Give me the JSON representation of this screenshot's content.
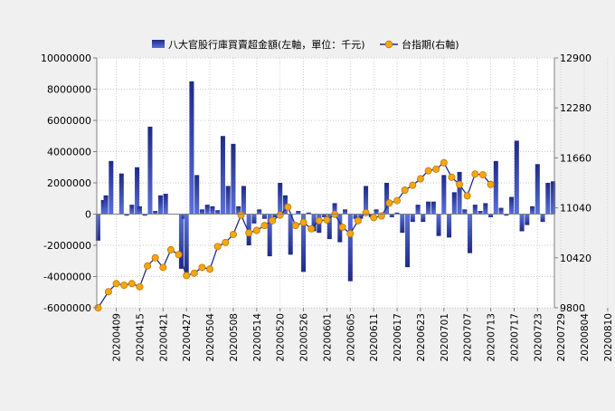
{
  "chart_data": {
    "type": "bar+line",
    "legend": {
      "placement": "top",
      "bar_label": "八大官股行庫買賣超金額(左軸，單位：千元)",
      "line_label": "台指期(右軸)"
    },
    "colors": {
      "bar_dark": "#1e2a86",
      "bar_light": "#5a70d8",
      "line": "#1f2a8c",
      "marker": "#f5a614",
      "marker_edge": "#c07a00",
      "plot_bg": "#ffffff",
      "page_bg": "#f0f0f0"
    },
    "y_left": {
      "min": -6000000,
      "max": 10000000,
      "ticks": [
        10000000,
        8000000,
        6000000,
        4000000,
        2000000,
        0,
        -2000000,
        -4000000,
        -6000000
      ]
    },
    "y_right": {
      "min": 9800,
      "max": 12900,
      "ticks": [
        12900,
        12280,
        11660,
        11040,
        10420,
        9800
      ]
    },
    "grid": true,
    "x_tick_labels": [
      {
        "index": 7,
        "label": "20200409"
      },
      {
        "index": 16,
        "label": "20200415"
      },
      {
        "index": 25,
        "label": "20200421"
      },
      {
        "index": 34,
        "label": "20200427"
      },
      {
        "index": 43,
        "label": "20200504"
      },
      {
        "index": 52,
        "label": "20200508"
      },
      {
        "index": 61,
        "label": "20200514"
      },
      {
        "index": 70,
        "label": "20200520"
      },
      {
        "index": 79,
        "label": "20200526"
      },
      {
        "index": 88,
        "label": "20200601"
      },
      {
        "index": 97,
        "label": "20200605"
      },
      {
        "index": 106,
        "label": "20200611"
      },
      {
        "index": 115,
        "label": "20200617"
      },
      {
        "index": 124,
        "label": "20200623"
      },
      {
        "index": 133,
        "label": "20200701"
      },
      {
        "index": 142,
        "label": "20200707"
      },
      {
        "index": 151,
        "label": "20200713"
      },
      {
        "index": 160,
        "label": "20200717"
      },
      {
        "index": 169,
        "label": "20200723"
      },
      {
        "index": 178,
        "label": "20200729"
      },
      {
        "index": 187,
        "label": "20200804"
      },
      {
        "index": 196,
        "label": "20200810"
      }
    ],
    "bars": [
      {
        "i": 0,
        "v": -1700000
      },
      {
        "i": 2,
        "v": 900000
      },
      {
        "i": 3,
        "v": 1200000
      },
      {
        "i": 5,
        "v": 3400000
      },
      {
        "i": 9,
        "v": 2600000
      },
      {
        "i": 11,
        "v": -100000
      },
      {
        "i": 13,
        "v": 600000
      },
      {
        "i": 15,
        "v": 3000000
      },
      {
        "i": 16,
        "v": 500000
      },
      {
        "i": 18,
        "v": -100000
      },
      {
        "i": 20,
        "v": 5600000
      },
      {
        "i": 22,
        "v": 200000
      },
      {
        "i": 24,
        "v": 1200000
      },
      {
        "i": 26,
        "v": 1300000
      },
      {
        "i": 32,
        "v": -3500000
      },
      {
        "i": 33,
        "v": -300000
      },
      {
        "i": 34,
        "v": -3800000
      },
      {
        "i": 36,
        "v": 8500000
      },
      {
        "i": 38,
        "v": 2500000
      },
      {
        "i": 40,
        "v": 300000
      },
      {
        "i": 42,
        "v": 600000
      },
      {
        "i": 44,
        "v": 500000
      },
      {
        "i": 46,
        "v": 250000
      },
      {
        "i": 48,
        "v": 5000000
      },
      {
        "i": 50,
        "v": 1800000
      },
      {
        "i": 52,
        "v": 4500000
      },
      {
        "i": 54,
        "v": 500000
      },
      {
        "i": 56,
        "v": 1800000
      },
      {
        "i": 58,
        "v": -2000000
      },
      {
        "i": 60,
        "v": -600000
      },
      {
        "i": 62,
        "v": 300000
      },
      {
        "i": 64,
        "v": -300000
      },
      {
        "i": 66,
        "v": -2700000
      },
      {
        "i": 68,
        "v": -200000
      },
      {
        "i": 70,
        "v": 2000000
      },
      {
        "i": 72,
        "v": 1200000
      },
      {
        "i": 74,
        "v": -2600000
      },
      {
        "i": 77,
        "v": 200000
      },
      {
        "i": 79,
        "v": -3700000
      },
      {
        "i": 81,
        "v": 100000
      },
      {
        "i": 83,
        "v": -1100000
      },
      {
        "i": 85,
        "v": -1200000
      },
      {
        "i": 87,
        "v": -200000
      },
      {
        "i": 89,
        "v": -1600000
      },
      {
        "i": 91,
        "v": 700000
      },
      {
        "i": 93,
        "v": -1800000
      },
      {
        "i": 95,
        "v": 300000
      },
      {
        "i": 97,
        "v": -4300000
      },
      {
        "i": 99,
        "v": -300000
      },
      {
        "i": 101,
        "v": -300000
      },
      {
        "i": 103,
        "v": 1800000
      },
      {
        "i": 105,
        "v": -200000
      },
      {
        "i": 107,
        "v": 300000
      },
      {
        "i": 109,
        "v": -200000
      },
      {
        "i": 111,
        "v": 2000000
      },
      {
        "i": 113,
        "v": -200000
      },
      {
        "i": 115,
        "v": 100000
      },
      {
        "i": 117,
        "v": -1200000
      },
      {
        "i": 119,
        "v": -3400000
      },
      {
        "i": 121,
        "v": -500000
      },
      {
        "i": 123,
        "v": 600000
      },
      {
        "i": 125,
        "v": -500000
      },
      {
        "i": 127,
        "v": 800000
      },
      {
        "i": 129,
        "v": 800000
      },
      {
        "i": 131,
        "v": -1400000
      },
      {
        "i": 133,
        "v": 2500000
      },
      {
        "i": 135,
        "v": -1500000
      },
      {
        "i": 137,
        "v": 1400000
      },
      {
        "i": 139,
        "v": 2700000
      },
      {
        "i": 141,
        "v": 300000
      },
      {
        "i": 143,
        "v": -2500000
      },
      {
        "i": 145,
        "v": 600000
      },
      {
        "i": 147,
        "v": 200000
      },
      {
        "i": 149,
        "v": 700000
      },
      {
        "i": 151,
        "v": -200000
      },
      {
        "i": 153,
        "v": 3400000
      },
      {
        "i": 155,
        "v": 400000
      },
      {
        "i": 157,
        "v": -100000
      },
      {
        "i": 159,
        "v": 1100000
      },
      {
        "i": 161,
        "v": 4700000
      },
      {
        "i": 163,
        "v": -1100000
      },
      {
        "i": 165,
        "v": -700000
      },
      {
        "i": 167,
        "v": 500000
      },
      {
        "i": 169,
        "v": 3200000
      },
      {
        "i": 171,
        "v": -500000
      },
      {
        "i": 173,
        "v": 2000000
      },
      {
        "i": 175,
        "v": 2100000
      }
    ],
    "line": [
      {
        "i": 0,
        "v": 9800
      },
      {
        "i": 4,
        "v": 10000
      },
      {
        "i": 7,
        "v": 10100
      },
      {
        "i": 10,
        "v": 10080
      },
      {
        "i": 13,
        "v": 10100
      },
      {
        "i": 16,
        "v": 10060
      },
      {
        "i": 19,
        "v": 10320
      },
      {
        "i": 22,
        "v": 10420
      },
      {
        "i": 25,
        "v": 10300
      },
      {
        "i": 28,
        "v": 10520
      },
      {
        "i": 31,
        "v": 10460
      },
      {
        "i": 34,
        "v": 10200
      },
      {
        "i": 37,
        "v": 10230
      },
      {
        "i": 40,
        "v": 10300
      },
      {
        "i": 43,
        "v": 10280
      },
      {
        "i": 46,
        "v": 10560
      },
      {
        "i": 49,
        "v": 10610
      },
      {
        "i": 52,
        "v": 10710
      },
      {
        "i": 55,
        "v": 10950
      },
      {
        "i": 58,
        "v": 10730
      },
      {
        "i": 61,
        "v": 10760
      },
      {
        "i": 64,
        "v": 10820
      },
      {
        "i": 67,
        "v": 10880
      },
      {
        "i": 70,
        "v": 10950
      },
      {
        "i": 73,
        "v": 11050
      },
      {
        "i": 76,
        "v": 10820
      },
      {
        "i": 79,
        "v": 10860
      },
      {
        "i": 82,
        "v": 10780
      },
      {
        "i": 85,
        "v": 10880
      },
      {
        "i": 88,
        "v": 10890
      },
      {
        "i": 91,
        "v": 10960
      },
      {
        "i": 94,
        "v": 10800
      },
      {
        "i": 97,
        "v": 10720
      },
      {
        "i": 100,
        "v": 10880
      },
      {
        "i": 103,
        "v": 10980
      },
      {
        "i": 106,
        "v": 10920
      },
      {
        "i": 109,
        "v": 10940
      },
      {
        "i": 112,
        "v": 11100
      },
      {
        "i": 115,
        "v": 11130
      },
      {
        "i": 118,
        "v": 11260
      },
      {
        "i": 121,
        "v": 11320
      },
      {
        "i": 124,
        "v": 11400
      },
      {
        "i": 127,
        "v": 11500
      },
      {
        "i": 130,
        "v": 11520
      },
      {
        "i": 133,
        "v": 11600
      },
      {
        "i": 136,
        "v": 11420
      },
      {
        "i": 139,
        "v": 11330
      },
      {
        "i": 142,
        "v": 11190
      },
      {
        "i": 145,
        "v": 11460
      },
      {
        "i": 148,
        "v": 11450
      },
      {
        "i": 151,
        "v": 11330
      }
    ]
  }
}
